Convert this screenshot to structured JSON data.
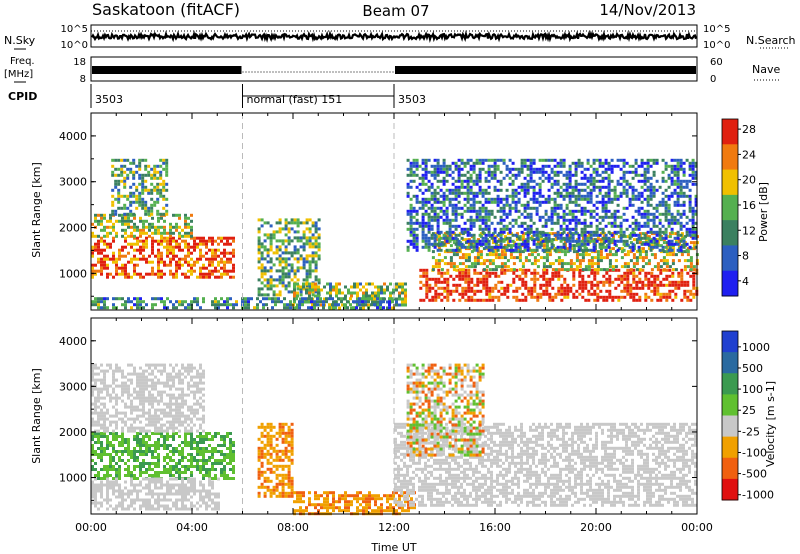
{
  "header": {
    "station": "Saskatoon (fitACF)",
    "beam": "Beam 07",
    "date": "14/Nov/2013"
  },
  "strips": {
    "nsky_label": "N.Sky",
    "nsearch_label": "N.Search",
    "nsky_ticks": [
      "10^5",
      "10^0"
    ],
    "nsky_right_ticks": [
      "10^5",
      "10^0"
    ],
    "freq_label_1": "Freq.",
    "freq_label_2": "[MHz]",
    "freq_ticks": [
      "18",
      "8"
    ],
    "nave_label": "Nave",
    "nave_ticks": [
      "60",
      "0"
    ],
    "cpid_label": "CPID",
    "cpid_segments": [
      {
        "label": "3503",
        "start_h": 0,
        "end_h": 6
      },
      {
        "label": "normal (fast) 151",
        "start_h": 6,
        "end_h": 12
      },
      {
        "label": "3503",
        "start_h": 12,
        "end_h": 24
      }
    ]
  },
  "chart_data": [
    {
      "type": "heatmap",
      "panel": "power",
      "ylabel": "Slant Range [km]",
      "ylim": [
        200,
        4500
      ],
      "yticks": [
        "1000",
        "2000",
        "3000",
        "4000"
      ],
      "xlim_hours": [
        0,
        24
      ],
      "colorbar": {
        "label": "Power [dB]",
        "ticks": [
          "4",
          "8",
          "12",
          "16",
          "20",
          "24",
          "28"
        ],
        "colors": [
          "#1f1ff0",
          "#2c5fc0",
          "#3b8060",
          "#55b050",
          "#f0c000",
          "#f07a10",
          "#e02010"
        ]
      },
      "echo_regions": [
        {
          "x0": 0.0,
          "x1": 5.6,
          "y0": 900,
          "y1": 1800,
          "level": 0.85
        },
        {
          "x0": 0.0,
          "x1": 4.0,
          "y0": 1800,
          "y1": 2300,
          "level": 0.55
        },
        {
          "x0": 0.8,
          "x1": 3.0,
          "y0": 2300,
          "y1": 3500,
          "level": 0.4
        },
        {
          "x0": 6.6,
          "x1": 9.0,
          "y0": 500,
          "y1": 2200,
          "level": 0.45
        },
        {
          "x0": 8.0,
          "x1": 12.5,
          "y0": 250,
          "y1": 800,
          "level": 0.5
        },
        {
          "x0": 0.0,
          "x1": 12.0,
          "y0": 220,
          "y1": 480,
          "level": 0.35
        },
        {
          "x0": 13.0,
          "x1": 24.0,
          "y0": 400,
          "y1": 1100,
          "level": 0.95
        },
        {
          "x0": 13.5,
          "x1": 24.0,
          "y0": 1100,
          "y1": 1900,
          "level": 0.6
        },
        {
          "x0": 12.5,
          "x1": 24.0,
          "y0": 1500,
          "y1": 3500,
          "level": 0.25
        }
      ]
    },
    {
      "type": "heatmap",
      "panel": "velocity",
      "xlabel": "Time UT",
      "ylabel": "Slant Range [km]",
      "ylim": [
        200,
        4500
      ],
      "yticks": [
        "1000",
        "2000",
        "3000",
        "4000"
      ],
      "xlim_hours": [
        0,
        24
      ],
      "xticks": [
        "00:00",
        "04:00",
        "08:00",
        "12:00",
        "16:00",
        "20:00",
        "00:00"
      ],
      "colorbar": {
        "label": "Velocity [m s-1]",
        "ticks": [
          "1000",
          "500",
          "100",
          "25",
          "-25",
          "-100",
          "-500",
          "-1000"
        ],
        "colors": [
          "#2040d0",
          "#2a6aa0",
          "#3b9a50",
          "#60c030",
          "#c8c8c8",
          "#f0a000",
          "#f06010",
          "#e01010"
        ]
      },
      "echo_regions": [
        {
          "x0": 0.0,
          "x1": 5.6,
          "y0": 1000,
          "y1": 2000,
          "class": "positive_small"
        },
        {
          "x0": 0.0,
          "x1": 5.0,
          "y0": 300,
          "y1": 1000,
          "class": "ground_scatter"
        },
        {
          "x0": 0.0,
          "x1": 4.5,
          "y0": 2000,
          "y1": 3500,
          "class": "ground_scatter"
        },
        {
          "x0": 6.6,
          "x1": 8.0,
          "y0": 600,
          "y1": 2200,
          "class": "negative_small"
        },
        {
          "x0": 8.0,
          "x1": 12.8,
          "y0": 220,
          "y1": 700,
          "class": "negative_small"
        },
        {
          "x0": 12.0,
          "x1": 24.0,
          "y0": 400,
          "y1": 2200,
          "class": "ground_scatter"
        },
        {
          "x0": 12.5,
          "x1": 15.5,
          "y0": 1500,
          "y1": 3500,
          "class": "mixed"
        }
      ]
    }
  ]
}
